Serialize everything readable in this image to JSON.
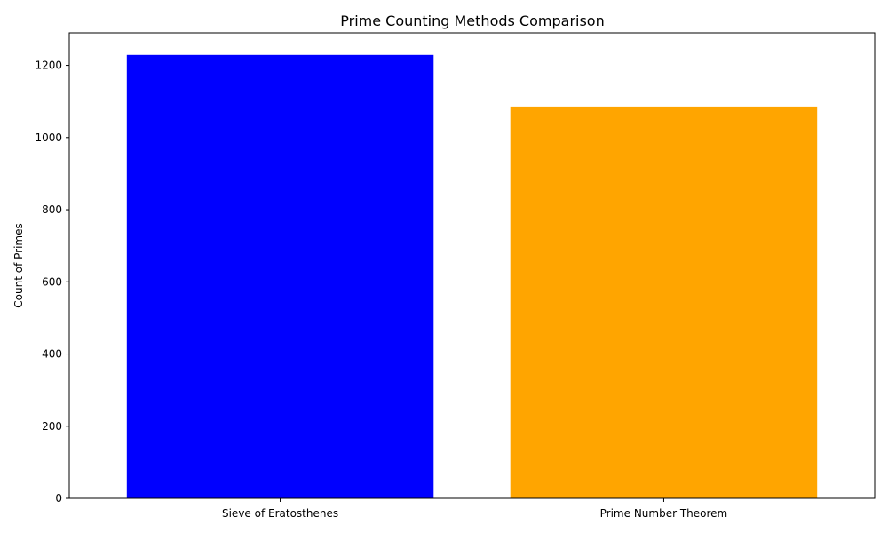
{
  "chart_data": {
    "type": "bar",
    "title": "Prime Counting Methods Comparison",
    "xlabel": "",
    "ylabel": "Count of Primes",
    "categories": [
      "Sieve of Eratosthenes",
      "Prime Number Theorem"
    ],
    "values": [
      1229,
      1086
    ],
    "colors": [
      "#0000ff",
      "#ffa500"
    ],
    "ylim": [
      0,
      1290
    ],
    "yticks": [
      0,
      200,
      400,
      600,
      800,
      1000,
      1200
    ],
    "grid": false,
    "legend": "none"
  }
}
